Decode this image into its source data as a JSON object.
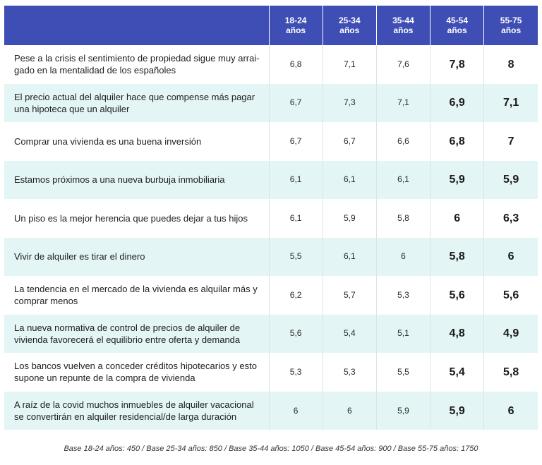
{
  "chart_data": {
    "type": "table",
    "columns": [
      "18-24\naños",
      "25-34\naños",
      "35-44\naños",
      "45-54\naños",
      "55-75\naños"
    ],
    "rows": [
      {
        "label": "Pese a la crisis el sentimiento de propiedad sigue muy arrai-gado en la mentalidad de los españoles",
        "values": [
          "6,8",
          "7,1",
          "7,6",
          "7,8",
          "8"
        ]
      },
      {
        "label": "El precio actual del alquiler hace que compense más pagar una hipoteca que un alquiler",
        "values": [
          "6,7",
          "7,3",
          "7,1",
          "6,9",
          "7,1"
        ]
      },
      {
        "label": "Comprar una vivienda es una buena inversión",
        "values": [
          "6,7",
          "6,7",
          "6,6",
          "6,8",
          "7"
        ]
      },
      {
        "label": "Estamos próximos a una nueva burbuja inmobiliaria",
        "values": [
          "6,1",
          "6,1",
          "6,1",
          "5,9",
          "5,9"
        ]
      },
      {
        "label": "Un piso es la mejor herencia que puedes dejar a tus hijos",
        "values": [
          "6,1",
          "5,9",
          "5,8",
          "6",
          "6,3"
        ]
      },
      {
        "label": "Vivir de alquiler es tirar el dinero",
        "values": [
          "5,5",
          "6,1",
          "6",
          "5,8",
          "6"
        ]
      },
      {
        "label": "La tendencia en el mercado de la vivienda es alquilar más y comprar menos",
        "values": [
          "6,2",
          "5,7",
          "5,3",
          "5,6",
          "5,6"
        ]
      },
      {
        "label": "La nueva normativa de control de precios de alquiler de vivienda favorecerá el equilibrio entre oferta y demanda",
        "values": [
          "5,6",
          "5,4",
          "5,1",
          "4,8",
          "4,9"
        ]
      },
      {
        "label": "Los bancos vuelven a conceder créditos hipotecarios y esto supone un repunte de la compra de vivienda",
        "values": [
          "5,3",
          "5,3",
          "5,5",
          "5,4",
          "5,8"
        ]
      },
      {
        "label": "A raíz de la covid muchos inmuebles de alquiler vacacional se convertirán en alquiler residencial/de larga duración",
        "values": [
          "6",
          "6",
          "5,9",
          "5,9",
          "6"
        ]
      }
    ],
    "footnote": "Base 18-24 años: 450 / Base 25-34 años: 850 / Base 35-44 años: 1050 / Base 45-54 años: 900 / Base 55-75 años: 1750"
  },
  "colors": {
    "header_bg": "#3e4eb4",
    "header_text": "#ffffff",
    "row_alt_bg": "#e3f5f5",
    "row_bg": "#ffffff"
  }
}
